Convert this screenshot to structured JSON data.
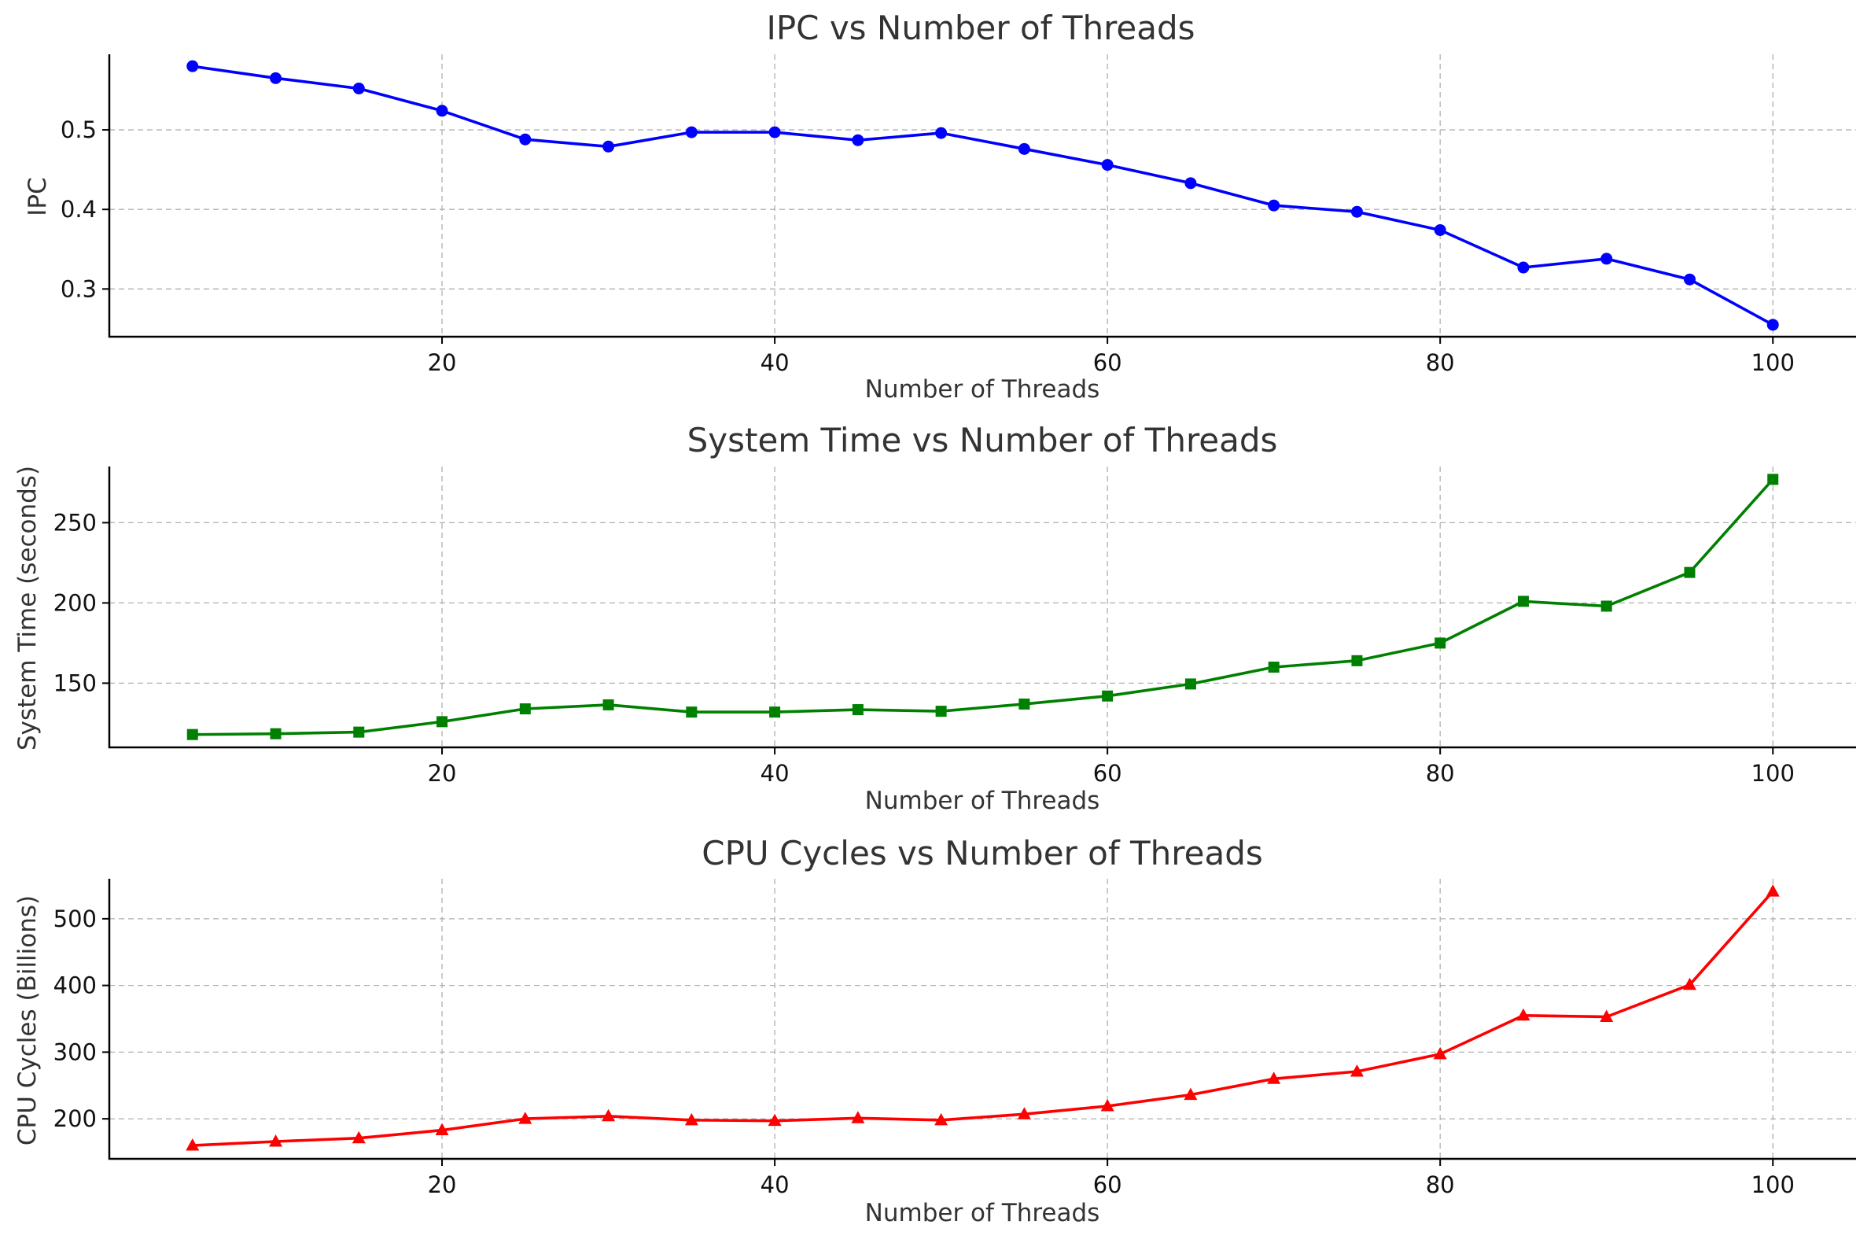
{
  "chart_data": [
    {
      "type": "line",
      "title": "IPC vs Number of Threads",
      "xlabel": "Number of Threads",
      "ylabel": "IPC",
      "xlim": [
        0,
        105
      ],
      "ylim": [
        0.24,
        0.595
      ],
      "xticks": [
        20,
        40,
        60,
        80,
        100
      ],
      "yticks": [
        0.3,
        0.4,
        0.5
      ],
      "ytick_labels": [
        "0.3",
        "0.4",
        "0.5"
      ],
      "grid": true,
      "color": "#0000ff",
      "marker": "circle",
      "x": [
        5,
        10,
        15,
        20,
        25,
        30,
        35,
        40,
        45,
        50,
        55,
        60,
        65,
        70,
        75,
        80,
        85,
        90,
        95,
        100
      ],
      "values": [
        0.58,
        0.565,
        0.552,
        0.524,
        0.488,
        0.479,
        0.497,
        0.497,
        0.487,
        0.496,
        0.476,
        0.456,
        0.433,
        0.405,
        0.397,
        0.374,
        0.327,
        0.338,
        0.312,
        0.255
      ]
    },
    {
      "type": "line",
      "title": "System Time vs Number of Threads",
      "xlabel": "Number of Threads",
      "ylabel": "System Time (seconds)",
      "xlim": [
        0,
        105
      ],
      "ylim": [
        110,
        285
      ],
      "xticks": [
        20,
        40,
        60,
        80,
        100
      ],
      "yticks": [
        150,
        200,
        250
      ],
      "ytick_labels": [
        "150",
        "200",
        "250"
      ],
      "grid": true,
      "color": "#008000",
      "marker": "square",
      "x": [
        5,
        10,
        15,
        20,
        25,
        30,
        35,
        40,
        45,
        50,
        55,
        60,
        65,
        70,
        75,
        80,
        85,
        90,
        95,
        100
      ],
      "values": [
        118,
        118.5,
        119.5,
        126,
        134,
        136.5,
        132,
        132,
        133.5,
        132.5,
        137,
        142,
        149.5,
        160,
        164,
        175,
        201,
        198,
        219,
        277
      ]
    },
    {
      "type": "line",
      "title": "CPU Cycles vs Number of Threads",
      "xlabel": "Number of Threads",
      "ylabel": "CPU Cycles (Billions)",
      "xlim": [
        0,
        105
      ],
      "ylim": [
        140,
        560
      ],
      "xticks": [
        20,
        40,
        60,
        80,
        100
      ],
      "yticks": [
        200,
        300,
        400,
        500
      ],
      "ytick_labels": [
        "200",
        "300",
        "400",
        "500"
      ],
      "grid": true,
      "color": "#ff0000",
      "marker": "triangle",
      "x": [
        5,
        10,
        15,
        20,
        25,
        30,
        35,
        40,
        45,
        50,
        55,
        60,
        65,
        70,
        75,
        80,
        85,
        90,
        95,
        100
      ],
      "values": [
        160,
        166,
        171,
        183,
        200,
        204,
        198,
        197,
        201,
        198,
        207,
        219,
        236,
        260,
        271,
        297,
        355,
        353,
        401,
        541
      ]
    }
  ]
}
